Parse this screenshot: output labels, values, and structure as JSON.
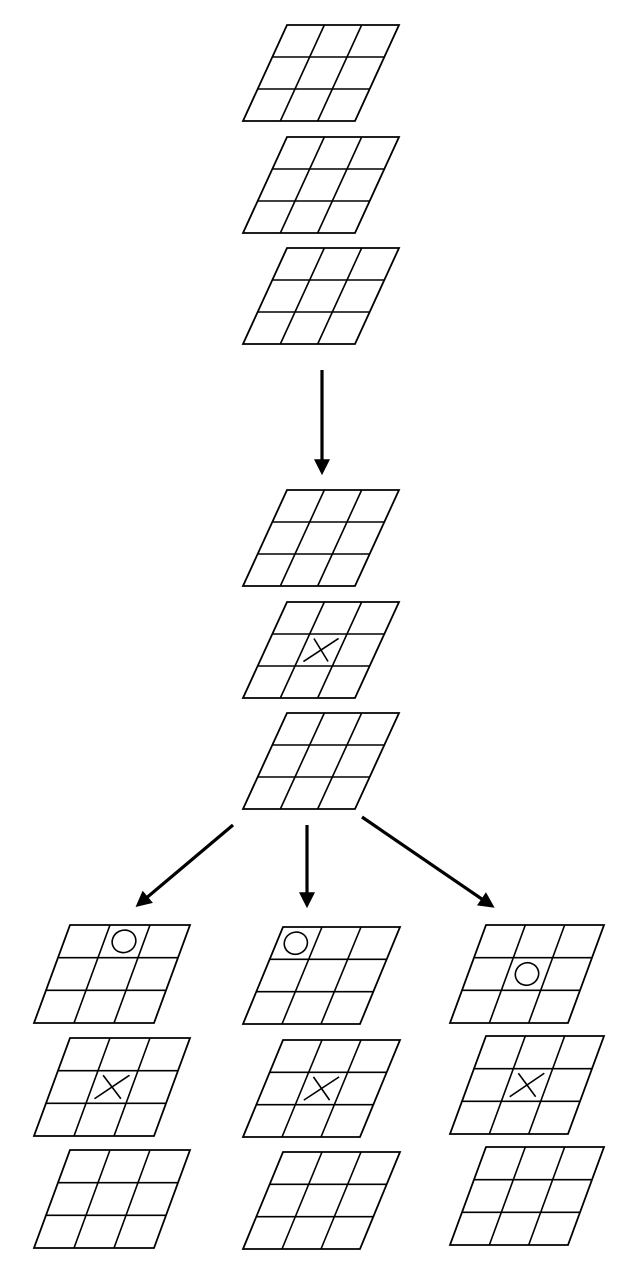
{
  "colors": {
    "ink": "#000000",
    "background": "#ffffff"
  },
  "grid_size": 3,
  "stages": [
    {
      "name": "empty-cube",
      "stacks": [
        {
          "name": "stack-root",
          "layers": [
            {
              "marks": []
            },
            {
              "marks": []
            },
            {
              "marks": []
            }
          ]
        }
      ]
    },
    {
      "name": "x-played",
      "stacks": [
        {
          "name": "stack-after-x",
          "layers": [
            {
              "marks": []
            },
            {
              "marks": [
                {
                  "type": "X",
                  "row": 1,
                  "col": 1
                }
              ]
            },
            {
              "marks": []
            }
          ]
        }
      ]
    },
    {
      "name": "o-replies",
      "stacks": [
        {
          "name": "stack-o-top-right",
          "layers": [
            {
              "marks": [
                {
                  "type": "O",
                  "row": 0,
                  "col": 1
                }
              ]
            },
            {
              "marks": [
                {
                  "type": "X",
                  "row": 1,
                  "col": 1
                }
              ]
            },
            {
              "marks": []
            }
          ]
        },
        {
          "name": "stack-o-top-left",
          "layers": [
            {
              "marks": [
                {
                  "type": "O",
                  "row": 0,
                  "col": 0
                }
              ]
            },
            {
              "marks": [
                {
                  "type": "X",
                  "row": 1,
                  "col": 1
                }
              ]
            },
            {
              "marks": []
            }
          ]
        },
        {
          "name": "stack-o-center",
          "layers": [
            {
              "marks": [
                {
                  "type": "O",
                  "row": 1,
                  "col": 1
                }
              ]
            },
            {
              "marks": [
                {
                  "type": "X",
                  "row": 1,
                  "col": 1
                }
              ]
            },
            {
              "marks": []
            }
          ]
        }
      ]
    }
  ],
  "arrows": [
    {
      "name": "arrow-root-to-x",
      "from": "stack-root",
      "to": "stack-after-x"
    },
    {
      "name": "arrow-x-to-o-top-right",
      "from": "stack-after-x",
      "to": "stack-o-top-right"
    },
    {
      "name": "arrow-x-to-o-top-left",
      "from": "stack-after-x",
      "to": "stack-o-top-left"
    },
    {
      "name": "arrow-x-to-o-center",
      "from": "stack-after-x",
      "to": "stack-o-center"
    }
  ]
}
